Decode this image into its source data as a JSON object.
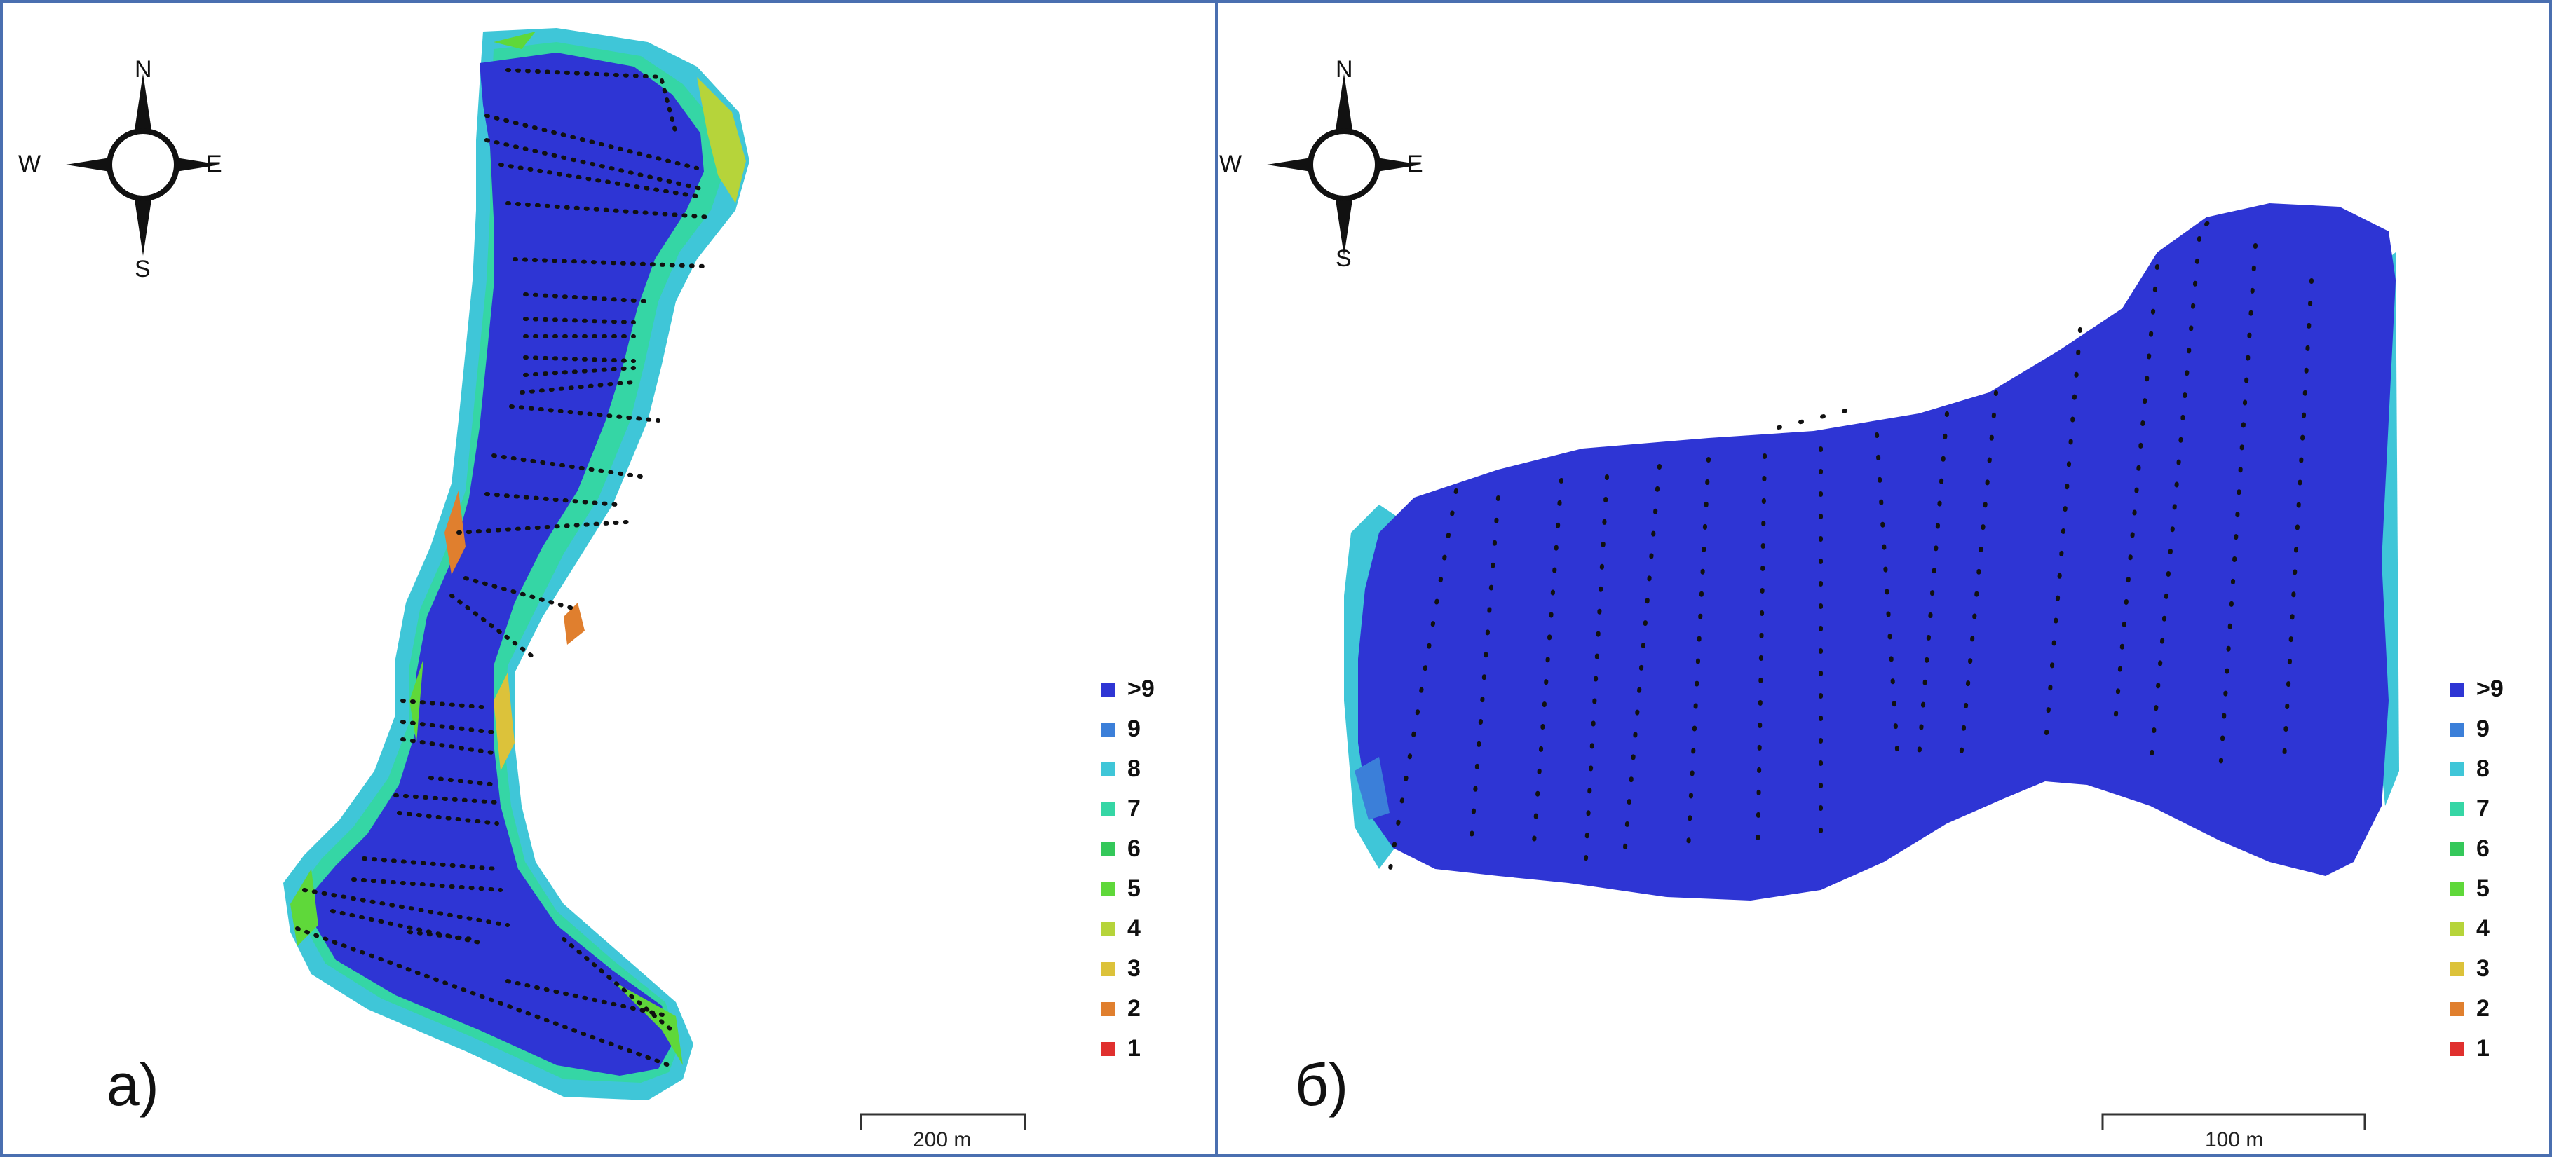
{
  "panels": [
    {
      "id": "a",
      "label": "а)",
      "scale_label": "200 m"
    },
    {
      "id": "b",
      "label": "б)",
      "scale_label": "100 m"
    }
  ],
  "compass": {
    "n": "N",
    "s": "S",
    "e": "E",
    "w": "W"
  },
  "legend": {
    "items": [
      {
        "label": ">9",
        "color": "#2e35d4"
      },
      {
        "label": "9",
        "color": "#3b7fd9"
      },
      {
        "label": "8",
        "color": "#3fc6d8"
      },
      {
        "label": "7",
        "color": "#35d6a5"
      },
      {
        "label": "6",
        "color": "#34c85a"
      },
      {
        "label": "5",
        "color": "#5fd83a"
      },
      {
        "label": "4",
        "color": "#b6d43a"
      },
      {
        "label": "3",
        "color": "#dcc23a"
      },
      {
        "label": "2",
        "color": "#e07f2e"
      },
      {
        "label": "1",
        "color": "#e0302e"
      }
    ]
  },
  "colors": {
    "water_deep": "#2e35d4",
    "frame": "#4a6fb0",
    "track": "#111111"
  }
}
